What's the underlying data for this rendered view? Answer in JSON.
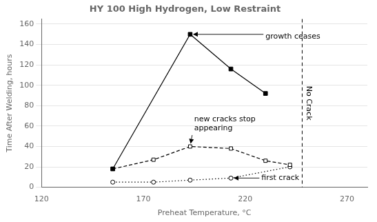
{
  "chart_data": {
    "type": "line",
    "title": "HY 100 High Hydrogen, Low Restraint",
    "xlabel": "Preheat Temperature, °C",
    "ylabel": "Time After Welding, hours",
    "xlim": [
      120,
      280
    ],
    "ylim": [
      0,
      165
    ],
    "xticks": [
      120,
      170,
      220,
      270
    ],
    "yticks": [
      0,
      20,
      40,
      60,
      80,
      100,
      120,
      140,
      160
    ],
    "grid": "y",
    "series": [
      {
        "x": [
          155,
          193,
          213,
          230
        ],
        "values": [
          18,
          150,
          116,
          92
        ],
        "color": "black",
        "line_style": "solid",
        "marker": "filled_square"
      },
      {
        "x": [
          155,
          175,
          193,
          213,
          230,
          242
        ],
        "values": [
          18,
          27,
          40,
          38,
          26,
          22
        ],
        "color": "black",
        "line_style": "dashed",
        "marker": "open_square"
      },
      {
        "x": [
          155,
          175,
          193,
          213,
          242
        ],
        "values": [
          5,
          5,
          7,
          9,
          20
        ],
        "color": "black",
        "line_style": "dotted",
        "marker": "open_circle"
      }
    ],
    "vline": {
      "x": 248,
      "text": "No Crack"
    },
    "annotations": [
      {
        "text": "growth ceases",
        "x": 193,
        "y": 150,
        "text_x": 230,
        "text_y": 148
      },
      {
        "text": "new cracks stop\nappearing",
        "x": 193,
        "y": 40,
        "text_x": 195,
        "text_y": 62
      },
      {
        "text": "first crack",
        "x": 213,
        "y": 9,
        "text_x": 228,
        "text_y": 9
      }
    ]
  }
}
